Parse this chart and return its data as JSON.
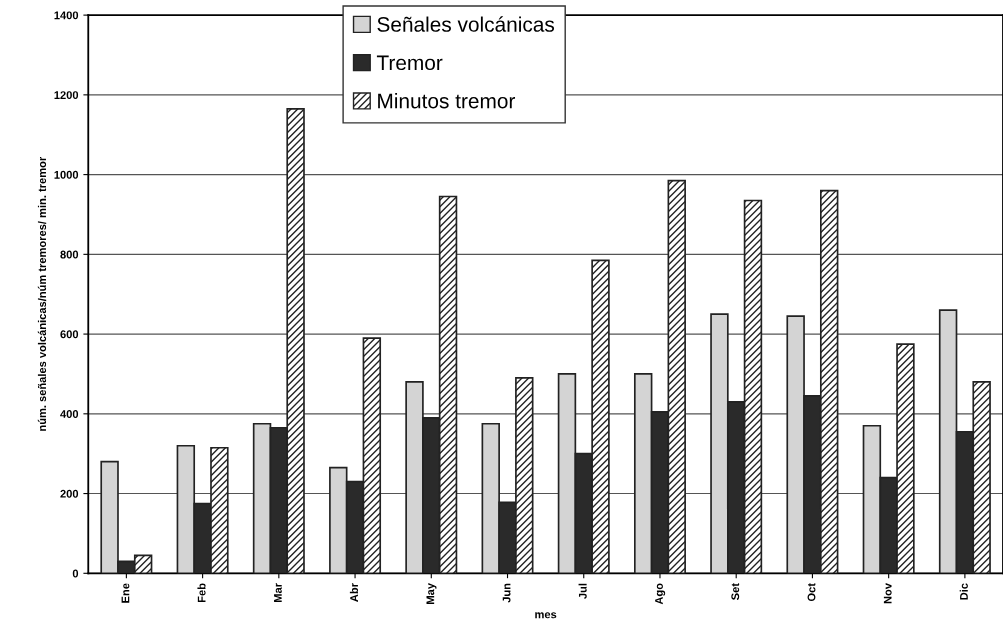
{
  "chart_data": {
    "type": "bar",
    "xlabel": "mes",
    "ylabel": "núm. señales volcánicas/núm tremores/ min. tremor",
    "categories": [
      "Ene",
      "Feb",
      "Mar",
      "Abr",
      "May",
      "Jun",
      "Jul",
      "Ago",
      "Set",
      "Oct",
      "Nov",
      "Dic"
    ],
    "series": [
      {
        "name": "Señales volcánicas",
        "color": "#d4d4d4",
        "values": [
          280,
          320,
          375,
          265,
          480,
          375,
          500,
          500,
          650,
          645,
          370,
          660
        ]
      },
      {
        "name": "Tremor",
        "color": "#2a2a2a",
        "values": [
          30,
          175,
          365,
          230,
          390,
          178,
          300,
          405,
          430,
          445,
          240,
          355
        ]
      },
      {
        "name": "Minutos tremor",
        "color": "#222222",
        "values": [
          45,
          315,
          1165,
          590,
          945,
          490,
          785,
          985,
          935,
          960,
          575,
          480
        ]
      }
    ],
    "ylim": [
      0,
      1400
    ],
    "yticks": [
      0,
      200,
      400,
      600,
      800,
      1000,
      1200,
      1400
    ],
    "grid": "y",
    "legend": "top"
  }
}
